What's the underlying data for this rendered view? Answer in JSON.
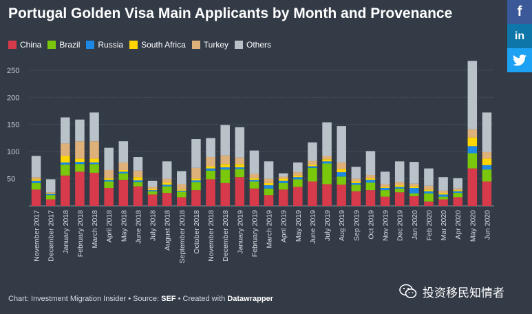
{
  "title": "Portugal Golden Visa Main Applicants by Month and Provenance",
  "share": {
    "facebook_icon": "f",
    "linkedin_icon": "in",
    "twitter_icon": "twitter-bird"
  },
  "legend": [
    {
      "name": "China",
      "color": "#d73a4a"
    },
    {
      "name": "Brazil",
      "color": "#7ac70c"
    },
    {
      "name": "Russia",
      "color": "#1e88e5"
    },
    {
      "name": "South Africa",
      "color": "#ffd600"
    },
    {
      "name": "Turkey",
      "color": "#deb07a"
    },
    {
      "name": "Others",
      "color": "#b8c2c8"
    }
  ],
  "footer": {
    "prefix": "Chart: Investment Migration Insider • Source: ",
    "source": "SEF",
    "middle": " • Created with ",
    "tool": "Datawrapper"
  },
  "wechat_label": "投资移民知情者",
  "chart_data": {
    "type": "bar",
    "stacked": true,
    "title": "Portugal Golden Visa Main Applicants by Month and Provenance",
    "xlabel": "",
    "ylabel": "",
    "ylim": [
      0,
      260
    ],
    "yticks": [
      50,
      100,
      150,
      200,
      250
    ],
    "grid": true,
    "legend_position": "top-left",
    "categories": [
      "November 2017",
      "December 2017",
      "January 2018",
      "February 2018",
      "March 2018",
      "April 2018",
      "May 2018",
      "June 2018",
      "July 2018",
      "August 2018",
      "September 2018",
      "October 2018",
      "November 2018",
      "December 2018",
      "January 2019",
      "February 2019",
      "March 2019",
      "April 2019",
      "May 2019",
      "June 2019",
      "July 2019",
      "Aug 2019",
      "Sep 2019",
      "Oct 2019",
      "Nov 2019",
      "Dec 2019",
      "Jan 2020",
      "Feb 2020",
      "Mar 2020",
      "Apr 2020",
      "May 2020",
      "Jun 2020"
    ],
    "series": [
      {
        "name": "China",
        "color": "#d73a4a",
        "values": [
          30,
          12,
          56,
          63,
          61,
          33,
          48,
          36,
          21,
          24,
          16,
          29,
          49,
          42,
          53,
          32,
          20,
          30,
          35,
          45,
          40,
          39,
          27,
          29,
          17,
          25,
          18,
          8,
          12,
          16,
          69,
          45
        ]
      },
      {
        "name": "Brazil",
        "color": "#7ac70c",
        "values": [
          12,
          8,
          20,
          14,
          16,
          12,
          12,
          8,
          6,
          12,
          10,
          15,
          16,
          25,
          15,
          13,
          12,
          12,
          14,
          25,
          38,
          15,
          12,
          14,
          12,
          7,
          5,
          15,
          5,
          8,
          28,
          22
        ]
      },
      {
        "name": "Russia",
        "color": "#1e88e5",
        "values": [
          4,
          2,
          4,
          4,
          3,
          3,
          3,
          3,
          2,
          3,
          2,
          3,
          4,
          4,
          3,
          3,
          6,
          4,
          4,
          3,
          4,
          8,
          3,
          5,
          4,
          3,
          10,
          4,
          4,
          3,
          13,
          8
        ]
      },
      {
        "name": "South Africa",
        "color": "#ffd600",
        "values": [
          3,
          1,
          12,
          6,
          7,
          3,
          3,
          6,
          2,
          4,
          2,
          3,
          4,
          6,
          6,
          3,
          4,
          4,
          3,
          3,
          4,
          6,
          3,
          3,
          2,
          3,
          3,
          3,
          3,
          2,
          16,
          12
        ]
      },
      {
        "name": "Turkey",
        "color": "#deb07a",
        "values": [
          4,
          2,
          23,
          32,
          32,
          15,
          14,
          12,
          4,
          7,
          10,
          20,
          17,
          16,
          12,
          8,
          8,
          4,
          6,
          7,
          6,
          12,
          5,
          6,
          5,
          6,
          5,
          7,
          4,
          3,
          15,
          12
        ]
      },
      {
        "name": "Others",
        "color": "#b8c2c8",
        "values": [
          39,
          24,
          48,
          40,
          53,
          41,
          39,
          25,
          11,
          32,
          24,
          53,
          35,
          56,
          56,
          43,
          32,
          6,
          18,
          34,
          62,
          67,
          22,
          44,
          23,
          38,
          40,
          32,
          25,
          19,
          126,
          73
        ]
      }
    ]
  }
}
